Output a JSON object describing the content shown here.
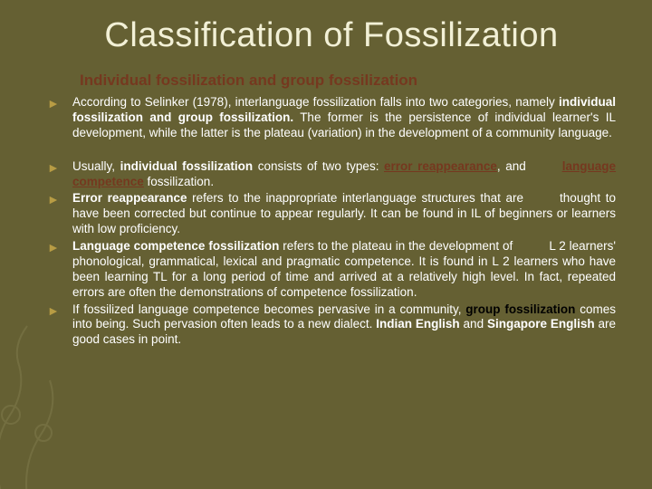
{
  "colors": {
    "background": "#656033",
    "title": "#f2f0d6",
    "subhead": "#75381f",
    "body_text": "#ffffff",
    "bullet_marker": "#b89c44",
    "emphasis_black": "#000000",
    "emphasis_brown": "#75381f"
  },
  "typography": {
    "title_fontsize": 38,
    "subhead_fontsize": 17,
    "body_fontsize": 13.5,
    "font_family": "Verdana"
  },
  "title": "Classification of Fossilization",
  "subhead": "Individual fossilization and group fossilization",
  "bullets": [
    {
      "spans": [
        {
          "t": "According to Selinker (1978), interlanguage fossilization falls into two categories, namely "
        },
        {
          "t": "individual fossilization and group fossilization.",
          "b": true
        },
        {
          "t": " The former is the persistence of individual learner's IL development, while the latter is the plateau (variation) in the development of a community language."
        }
      ],
      "gap_after": true
    },
    {
      "spans": [
        {
          "t": "Usually, "
        },
        {
          "t": "individual fossilization",
          "b": true
        },
        {
          "t": " consists of two types: "
        },
        {
          "t": "error reappearance",
          "b": true,
          "u": true,
          "c": "brn"
        },
        {
          "t": ", and"
        },
        {
          "t": " ",
          "pad": true
        },
        {
          "t": "language competence",
          "b": true,
          "u": true,
          "c": "brn"
        },
        {
          "t": " fossilization."
        }
      ]
    },
    {
      "spans": [
        {
          "t": "Error reappearance",
          "b": true
        },
        {
          "t": " refers to the inappropriate interlanguage structures that are"
        },
        {
          "t": " ",
          "pad": true
        },
        {
          "t": "thought to have been corrected but continue to appear regularly. It can be found in IL of beginners or learners with low proficiency."
        }
      ]
    },
    {
      "spans": [
        {
          "t": "Language competence fossilization",
          "b": true
        },
        {
          "t": " refers to the plateau in the development of"
        },
        {
          "t": " ",
          "pad": true
        },
        {
          "t": "L 2 learners' phonological, grammatical, lexical and pragmatic competence. It is found in L 2 learners who have been learning TL for a long period of time and arrived at a relatively high level. In fact, repeated errors are often the demonstrations of competence fossilization."
        }
      ]
    },
    {
      "spans": [
        {
          "t": "If fossilized language competence becomes pervasive in a community, "
        },
        {
          "t": "group fossilization",
          "b": true,
          "c": "blk"
        },
        {
          "t": " comes into being. Such pervasion often leads to a new dialect. "
        },
        {
          "t": "Indian English",
          "b": true
        },
        {
          "t": " and "
        },
        {
          "t": "Singapore English",
          "b": true
        },
        {
          "t": " are good cases in point."
        }
      ]
    }
  ]
}
